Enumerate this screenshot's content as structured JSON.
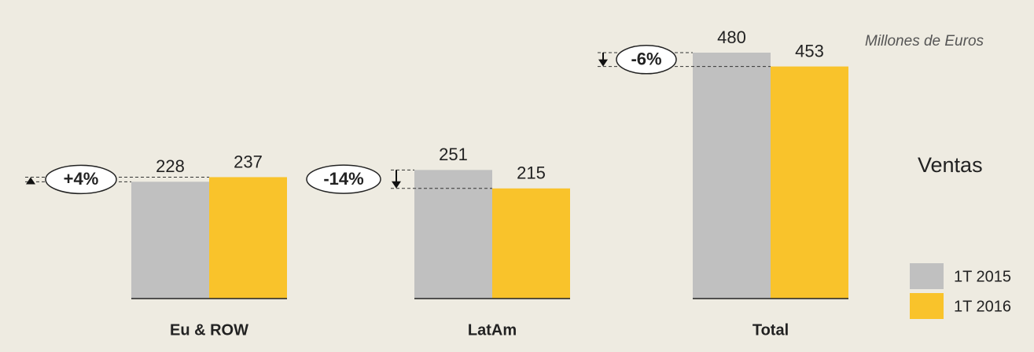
{
  "chart_data": {
    "type": "bar",
    "subtitle": "Millones de Euros",
    "title": "Ventas",
    "categories": [
      "Eu & ROW",
      "LatAm",
      "Total"
    ],
    "series": [
      {
        "name": "1T 2015",
        "color": "#c0c0c0",
        "values": [
          228,
          251,
          480
        ]
      },
      {
        "name": "1T 2016",
        "color": "#f9c32b",
        "values": [
          237,
          215,
          453
        ]
      }
    ],
    "annotations": [
      "+4%",
      "-14%",
      "-6%"
    ]
  }
}
